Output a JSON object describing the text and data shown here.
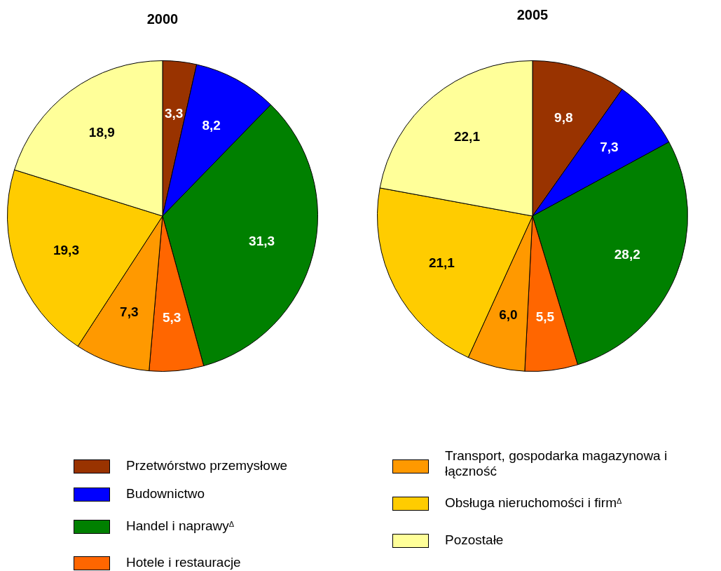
{
  "chart_data": [
    {
      "type": "pie",
      "title": "2000",
      "categories": [
        "Przetwórstwo przemysłowe",
        "Budownictwo",
        "Handel i naprawy$^{Δ}$",
        "Hotele i restauracje",
        "Transport, gospodarka magazynowa i łączność",
        "Obsługa nieruchomości i firm$^{Δ}$",
        "Pozostałe"
      ],
      "values": [
        3.3,
        8.2,
        31.3,
        5.3,
        7.3,
        19.3,
        18.9
      ],
      "value_labels": [
        "3,3",
        "8,2",
        "31,3",
        "5,3",
        "7,3",
        "19,3",
        "18,9"
      ],
      "colors": [
        "#993300",
        "#0000ff",
        "#008000",
        "#ff6600",
        "#ff9900",
        "#ffcc00",
        "#ffff99"
      ],
      "legend": "bottom"
    },
    {
      "type": "pie",
      "title": "2005",
      "categories": [
        null,
        null,
        null,
        null,
        null,
        null,
        null
      ],
      "values": [
        9.8,
        7.3,
        28.2,
        5.5,
        6.0,
        21.1,
        22.1
      ],
      "value_labels": [
        "9,8",
        "7,3",
        "28,2",
        "5,5",
        "6,0",
        "21,1",
        "22,1"
      ],
      "colors": [
        "#993300",
        "#0000ff",
        "#008000",
        "#ff6600",
        "#ff9900",
        "#ffcc00",
        "#ffff99"
      ]
    }
  ]
}
